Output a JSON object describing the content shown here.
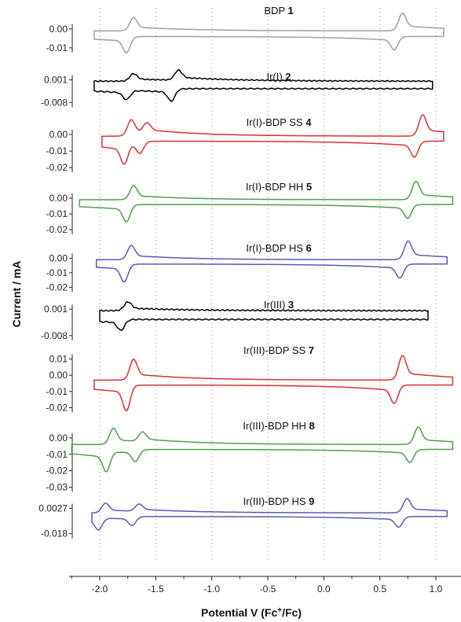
{
  "chart_data": {
    "type": "line",
    "xlabel": "Potential V (Fc",
    "xlabel_sup": "+",
    "xlabel_tail": "/Fc)",
    "ylabel": "Current / mA",
    "x_ticks": [
      "-2.0",
      "-1.5",
      "-1.0",
      "-0.5",
      "0.0",
      "0.5",
      "1.0"
    ],
    "xlim": [
      -2.25,
      1.15
    ],
    "grid": "vertical dotted",
    "panels": [
      {
        "name": "BDP",
        "num": "1",
        "color": "#a0a0a0",
        "y_ticks": [
          "0.00",
          "-0.01"
        ],
        "ylim": [
          -0.018,
          0.012
        ],
        "waves": [
          {
            "e": -1.7,
            "ip": 0.007
          },
          {
            "e": 0.7,
            "ip": 0.008
          }
        ],
        "x_start": -2.05,
        "x_end": 1.07,
        "baseline": 0.0,
        "noise": 0.0
      },
      {
        "name": "Ir(I)",
        "num": "2",
        "color": "#000000",
        "y_ticks": [
          "0.001",
          "-0.008"
        ],
        "ylim": [
          -0.011,
          0.004
        ],
        "waves": [
          {
            "e": -1.7,
            "ip": 0.003
          },
          {
            "e": -1.3,
            "ip": 0.004
          }
        ],
        "x_start": -2.05,
        "x_end": 0.97,
        "baseline": 0.0015,
        "noise": 0.0002
      },
      {
        "name": "Ir(I)-BDP SS",
        "num": "4",
        "color": "#e03030",
        "y_ticks": [
          "0.00",
          "-0.01",
          "-0.02"
        ],
        "ylim": [
          -0.028,
          0.01
        ],
        "waves": [
          {
            "e": -1.72,
            "ip": 0.01
          },
          {
            "e": -1.58,
            "ip": 0.006
          },
          {
            "e": 0.88,
            "ip": 0.011
          }
        ],
        "x_start": -1.98,
        "x_end": 1.07,
        "baseline": 0.0,
        "noise": 0.0
      },
      {
        "name": "Ir(I)-BDP HH",
        "num": "5",
        "color": "#4ea04e",
        "y_ticks": [
          "0.00",
          "-0.01",
          "-0.02"
        ],
        "ylim": [
          -0.028,
          0.01
        ],
        "waves": [
          {
            "e": -1.7,
            "ip": 0.009
          },
          {
            "e": 0.82,
            "ip": 0.01
          }
        ],
        "x_start": -2.18,
        "x_end": 1.15,
        "baseline": 0.0,
        "noise": 0.0
      },
      {
        "name": "Ir(I)-BDP HS",
        "num": "6",
        "color": "#5a5ab8",
        "y_ticks": [
          "0.00",
          "-0.01",
          "-0.02"
        ],
        "ylim": [
          -0.028,
          0.01
        ],
        "waves": [
          {
            "e": -1.72,
            "ip": 0.01
          },
          {
            "e": 0.75,
            "ip": 0.011
          }
        ],
        "x_start": -2.03,
        "x_end": 1.1,
        "baseline": 0.0,
        "noise": 0.0
      },
      {
        "name": "Ir(III)",
        "num": "3",
        "color": "#000000",
        "y_ticks": [
          "0.001",
          "-0.008"
        ],
        "ylim": [
          -0.011,
          0.004
        ],
        "waves": [
          {
            "e": -1.75,
            "ip": 0.003
          }
        ],
        "x_start": -2.0,
        "x_end": 0.93,
        "baseline": 0.0015,
        "noise": 0.0002
      },
      {
        "name": "Ir(III)-BDP SS",
        "num": "7",
        "color": "#e03030",
        "y_ticks": [
          "0.01",
          "0.00",
          "-0.01",
          "-0.02"
        ],
        "ylim": [
          -0.028,
          0.018
        ],
        "waves": [
          {
            "e": -1.7,
            "ip": 0.013
          },
          {
            "e": 0.7,
            "ip": 0.013
          }
        ],
        "x_start": -2.05,
        "x_end": 1.15,
        "baseline": -0.002,
        "noise": 0.0
      },
      {
        "name": "Ir(III)-BDP HH",
        "num": "8",
        "color": "#4ea04e",
        "y_ticks": [
          "0.00",
          "-0.01",
          "-0.02",
          "-0.03"
        ],
        "ylim": [
          -0.035,
          0.01
        ],
        "waves": [
          {
            "e": -1.88,
            "ip": 0.01
          },
          {
            "e": -1.62,
            "ip": 0.006
          },
          {
            "e": 0.84,
            "ip": 0.009
          }
        ],
        "x_start": -2.25,
        "x_end": 1.15,
        "baseline": -0.003,
        "noise": 0.0
      },
      {
        "name": "Ir(III)-BDP HS",
        "num": "9",
        "color": "#5a5ab8",
        "y_ticks": [
          "0.0027",
          "-0.018"
        ],
        "ylim": [
          -0.035,
          0.012
        ],
        "waves": [
          {
            "e": -1.95,
            "ip": 0.008
          },
          {
            "e": -1.65,
            "ip": 0.006
          },
          {
            "e": 0.74,
            "ip": 0.01
          }
        ],
        "x_start": -2.07,
        "x_end": 1.1,
        "baseline": 0.0,
        "noise": 0.0
      }
    ]
  }
}
